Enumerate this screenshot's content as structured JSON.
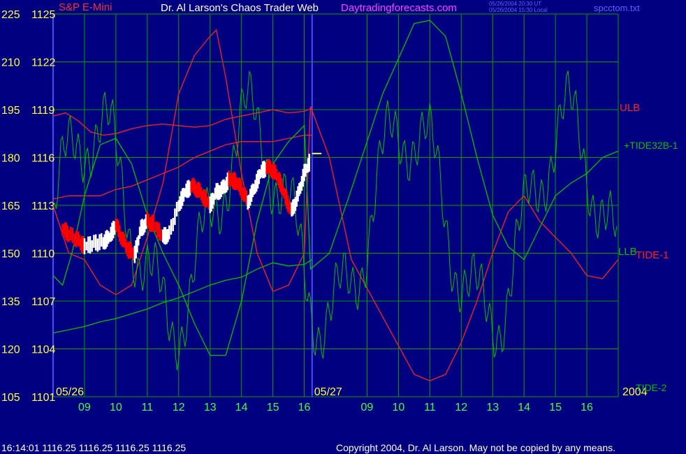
{
  "header": {
    "instrument": "S&P E-Mini",
    "title": "Dr. Al Larson's Chaos Trader Web",
    "site": "Daytradingforecasts.com",
    "stamp_ut": "05/26/2004 20:30 UT",
    "stamp_local": "05/26/2004 15:30 Local",
    "file": "spcctom.txt"
  },
  "footer": {
    "quote": "16:14:01  1116.25 1116.25 1116.25 1116.25",
    "copyright": "Copyright 2004, Dr. Al Larson. May not be copied by any means."
  },
  "colors": {
    "background": "#000080",
    "grid": "#00a000",
    "price_up": "#ffffff",
    "price_down": "#ff0000",
    "red_curve": "#ff2020",
    "green_curve": "#00c000",
    "day_divider": "#4a4aff",
    "axis_text": "#ffff40",
    "time_text": "#40ff40"
  },
  "chart_data": {
    "type": "line",
    "axes": {
      "left_outer": [
        "225",
        "210",
        "195",
        "180",
        "165",
        "150",
        "135",
        "120",
        "105"
      ],
      "left_inner": [
        "1125",
        "1122",
        "1119",
        "1116",
        "1113",
        "1110",
        "1107",
        "1104",
        "1101"
      ],
      "ylim_price": [
        1101,
        1125
      ],
      "ylim_tide": [
        105,
        225
      ]
    },
    "x_labels": [
      "09",
      "10",
      "11",
      "12",
      "13",
      "14",
      "15",
      "16",
      "09",
      "10",
      "11",
      "12",
      "13",
      "14",
      "15",
      "16"
    ],
    "date_labels": [
      "05/26",
      "05/27"
    ],
    "year_label": "2004",
    "grid": true,
    "series_labels": {
      "ulb": "ULB",
      "tide32": "+TIDE32B-1",
      "llb": "LLB",
      "tide1": "TIDE-1",
      "tide2": "TIDE-2"
    },
    "last_price": 1116.25,
    "price_path": [
      [
        8.3,
        1111.5
      ],
      [
        8.5,
        1111.2
      ],
      [
        8.8,
        1110.8
      ],
      [
        9.0,
        1110.4
      ],
      [
        9.3,
        1110.6
      ],
      [
        9.6,
        1110.7
      ],
      [
        9.8,
        1111.0
      ],
      [
        10.0,
        1111.8
      ],
      [
        10.2,
        1110.9
      ],
      [
        10.4,
        1110.2
      ],
      [
        10.6,
        1109.9
      ],
      [
        10.8,
        1111.5
      ],
      [
        11.0,
        1112.0
      ],
      [
        11.2,
        1111.8
      ],
      [
        11.5,
        1111.0
      ],
      [
        11.7,
        1111.2
      ],
      [
        12.0,
        1113.0
      ],
      [
        12.2,
        1113.8
      ],
      [
        12.4,
        1114.2
      ],
      [
        12.6,
        1114.0
      ],
      [
        12.8,
        1113.5
      ],
      [
        13.0,
        1113.0
      ],
      [
        13.2,
        1113.8
      ],
      [
        13.4,
        1114.0
      ],
      [
        13.6,
        1114.6
      ],
      [
        13.8,
        1114.5
      ],
      [
        14.0,
        1114.0
      ],
      [
        14.2,
        1113.2
      ],
      [
        14.4,
        1114.0
      ],
      [
        14.6,
        1115.0
      ],
      [
        14.8,
        1115.4
      ],
      [
        15.0,
        1115.2
      ],
      [
        15.2,
        1114.6
      ],
      [
        15.4,
        1113.5
      ],
      [
        15.6,
        1112.6
      ],
      [
        15.8,
        1113.6
      ],
      [
        16.0,
        1115.0
      ],
      [
        16.2,
        1115.8
      ]
    ],
    "red_lower": [
      [
        8.0,
        1113.4
      ],
      [
        8.5,
        1113.6
      ],
      [
        9.0,
        1113.6
      ],
      [
        9.5,
        1113.6
      ],
      [
        10.0,
        1114.0
      ],
      [
        10.5,
        1114.2
      ],
      [
        11.0,
        1114.6
      ],
      [
        11.5,
        1115.0
      ],
      [
        12.0,
        1115.4
      ],
      [
        12.5,
        1116.0
      ],
      [
        13.0,
        1116.4
      ],
      [
        13.5,
        1116.8
      ],
      [
        14.0,
        1117.0
      ],
      [
        14.5,
        1117.0
      ],
      [
        15.0,
        1117.0
      ],
      [
        15.5,
        1117.2
      ],
      [
        16.0,
        1117.4
      ],
      [
        16.25,
        1117.4
      ]
    ],
    "red_upper": [
      [
        8.0,
        1118.6
      ],
      [
        8.4,
        1118.8
      ],
      [
        8.8,
        1118.3
      ],
      [
        9.2,
        1117.6
      ],
      [
        9.6,
        1117.4
      ],
      [
        10.0,
        1117.5
      ],
      [
        10.5,
        1117.8
      ],
      [
        11.0,
        1118.0
      ],
      [
        11.5,
        1118.1
      ],
      [
        12.0,
        1118.0
      ],
      [
        12.5,
        1117.9
      ],
      [
        13.0,
        1118.0
      ],
      [
        13.5,
        1118.4
      ],
      [
        14.0,
        1118.6
      ],
      [
        14.5,
        1118.8
      ],
      [
        15.0,
        1119.0
      ],
      [
        15.5,
        1118.8
      ],
      [
        16.0,
        1118.9
      ],
      [
        16.25,
        1119.1
      ]
    ],
    "green_lower": [
      [
        8.0,
        1105.0
      ],
      [
        8.5,
        1105.2
      ],
      [
        9.0,
        1105.4
      ],
      [
        9.5,
        1105.7
      ],
      [
        10.0,
        1105.9
      ],
      [
        10.5,
        1106.2
      ],
      [
        11.0,
        1106.5
      ],
      [
        11.5,
        1106.9
      ],
      [
        12.0,
        1107.2
      ],
      [
        12.5,
        1107.6
      ],
      [
        13.0,
        1108.0
      ],
      [
        13.5,
        1108.3
      ],
      [
        14.0,
        1108.5
      ],
      [
        14.5,
        1109.0
      ],
      [
        15.0,
        1109.4
      ],
      [
        15.5,
        1109.2
      ],
      [
        16.0,
        1109.3
      ],
      [
        16.25,
        1109.6
      ]
    ],
    "tide_red": [
      [
        8.0,
        165
      ],
      [
        8.5,
        150
      ],
      [
        9.0,
        148
      ],
      [
        9.5,
        140
      ],
      [
        10.0,
        137
      ],
      [
        10.5,
        140
      ],
      [
        11.0,
        155
      ],
      [
        11.5,
        172
      ],
      [
        12.0,
        200
      ],
      [
        12.5,
        212
      ],
      [
        13.0,
        218
      ],
      [
        13.2,
        220
      ],
      [
        13.5,
        205
      ],
      [
        14.0,
        175
      ],
      [
        14.5,
        150
      ],
      [
        15.0,
        138
      ],
      [
        15.5,
        140
      ],
      [
        16.0,
        150
      ],
      [
        16.2,
        196
      ],
      [
        16.8,
        180
      ],
      [
        17.5,
        148
      ],
      [
        18.5,
        130
      ],
      [
        19.5,
        112
      ],
      [
        20.0,
        110
      ],
      [
        20.5,
        112
      ],
      [
        21.0,
        122
      ],
      [
        21.5,
        135
      ],
      [
        22.0,
        150
      ],
      [
        22.5,
        163
      ],
      [
        23.0,
        168
      ],
      [
        23.5,
        160
      ],
      [
        24.0,
        155
      ],
      [
        24.5,
        150
      ],
      [
        25.0,
        143
      ],
      [
        25.5,
        142
      ],
      [
        26.0,
        148
      ]
    ],
    "tide_green_smooth": [
      [
        8.0,
        143
      ],
      [
        8.3,
        140
      ],
      [
        8.6,
        150
      ],
      [
        9.0,
        168
      ],
      [
        9.5,
        184
      ],
      [
        10.0,
        186
      ],
      [
        10.5,
        178
      ],
      [
        11.0,
        162
      ],
      [
        11.5,
        150
      ],
      [
        12.0,
        140
      ],
      [
        12.5,
        128
      ],
      [
        13.0,
        118
      ],
      [
        13.5,
        118
      ],
      [
        14.0,
        135
      ],
      [
        14.5,
        160
      ],
      [
        15.0,
        178
      ],
      [
        15.5,
        185
      ],
      [
        16.0,
        190
      ],
      [
        16.2,
        145
      ],
      [
        16.8,
        150
      ],
      [
        17.5,
        170
      ],
      [
        18.5,
        200
      ],
      [
        19.5,
        222
      ],
      [
        20.0,
        223
      ],
      [
        20.5,
        218
      ],
      [
        21.0,
        200
      ],
      [
        21.5,
        180
      ],
      [
        22.0,
        162
      ],
      [
        22.5,
        152
      ],
      [
        23.0,
        148
      ],
      [
        23.5,
        158
      ],
      [
        24.0,
        168
      ],
      [
        24.5,
        172
      ],
      [
        25.0,
        175
      ],
      [
        25.5,
        180
      ],
      [
        26.0,
        182
      ]
    ]
  }
}
